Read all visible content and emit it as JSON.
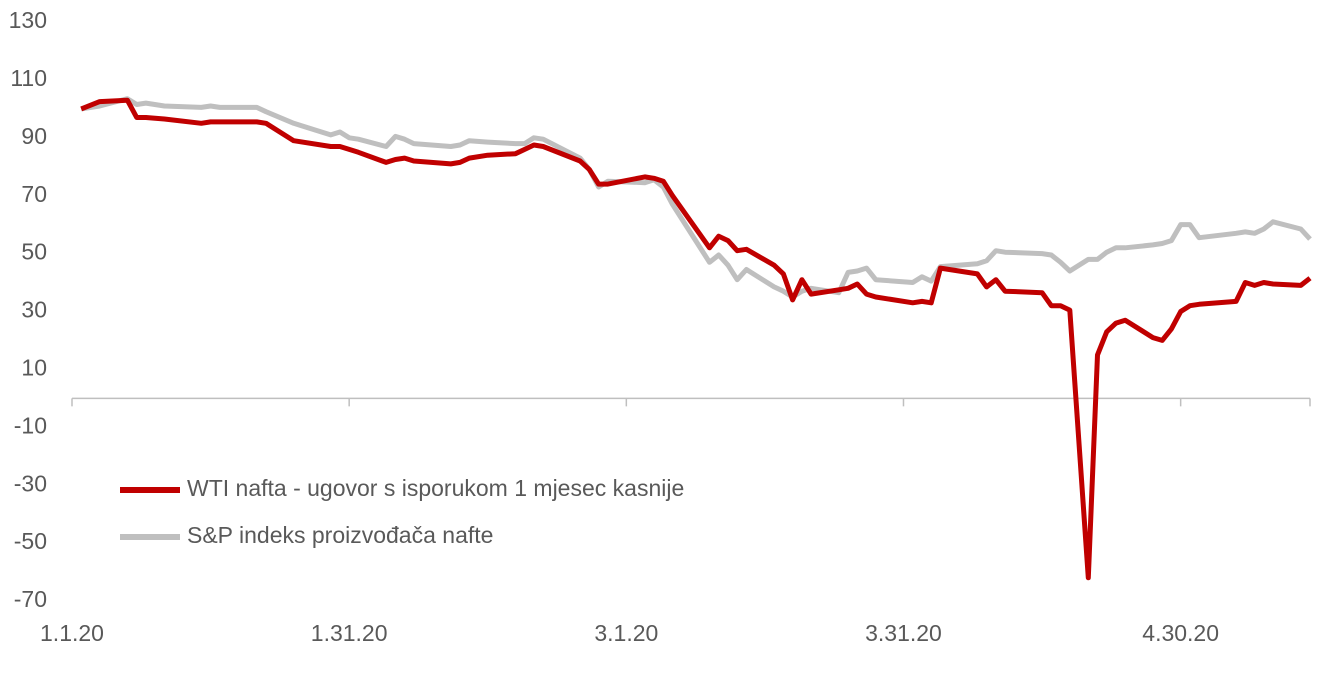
{
  "chart_data": {
    "type": "line",
    "x": [
      "1.2.20",
      "1.4.20",
      "1.7.20",
      "1.8.20",
      "1.9.20",
      "1.11.20",
      "1.15.20",
      "1.16.20",
      "1.17.20",
      "1.21.20",
      "1.22.20",
      "1.25.20",
      "1.29.20",
      "1.30.20",
      "1.31.20",
      "2.1.20",
      "2.4.20",
      "2.5.20",
      "2.6.20",
      "2.7.20",
      "2.11.20",
      "2.12.20",
      "2.13.20",
      "2.15.20",
      "2.18.20",
      "2.19.20",
      "2.20.20",
      "2.21.20",
      "2.25.20",
      "2.26.20",
      "2.27.20",
      "2.28.20",
      "3.3.20",
      "3.4.20",
      "3.5.20",
      "3.6.20",
      "3.10.20",
      "3.11.20",
      "3.12.20",
      "3.13.20",
      "3.14.20",
      "3.17.20",
      "3.18.20",
      "3.19.20",
      "3.20.20",
      "3.21.20",
      "3.24.20",
      "3.25.20",
      "3.26.20",
      "3.27.20",
      "3.28.20",
      "4.1.20",
      "4.2.20",
      "4.3.20",
      "4.4.20",
      "4.8.20",
      "4.9.20",
      "4.10.20",
      "4.11.20",
      "4.15.20",
      "4.16.20",
      "4.17.20",
      "4.18.20",
      "4.20.20",
      "4.21.20",
      "4.22.20",
      "4.23.20",
      "4.24.20",
      "4.27.20",
      "4.28.20",
      "4.29.20",
      "4.30.20",
      "5.1.20",
      "5.2.20",
      "5.6.20",
      "5.7.20",
      "5.8.20",
      "5.9.20",
      "5.10.20",
      "5.13.20",
      "5.14.20"
    ],
    "series": [
      {
        "name": "WTI nafta - ugovor s isporukom 1 mjesec kasnije",
        "color": "#c00000",
        "values": [
          100,
          102.5,
          103,
          97,
          97,
          96.5,
          95,
          95.5,
          95.5,
          95.5,
          95,
          89,
          87,
          87,
          86,
          85,
          81.5,
          82.5,
          83,
          82,
          81,
          81.5,
          83,
          84,
          84.5,
          86,
          87.5,
          87,
          82,
          79,
          74,
          74,
          76.5,
          76,
          75,
          70,
          52,
          56,
          54.5,
          51,
          51.5,
          46,
          43,
          34,
          41,
          36,
          37.5,
          38,
          39.5,
          36,
          35,
          33,
          33.5,
          33,
          45,
          43,
          38.5,
          41,
          37,
          36.5,
          32,
          32,
          30.5,
          -62,
          15,
          23,
          26,
          27,
          21,
          20,
          24,
          30,
          32,
          32.5,
          33.5,
          40,
          39,
          40,
          39.5,
          39,
          41.5
        ]
      },
      {
        "name": "S&P indeks proizvođača nafte",
        "color": "#bfbfbf",
        "values": [
          100,
          101,
          103.5,
          101.5,
          102,
          101,
          100.5,
          101,
          100.5,
          100.5,
          99,
          95,
          91,
          92,
          90,
          89.5,
          87,
          90.5,
          89.5,
          88,
          87,
          87.5,
          89,
          88.5,
          88,
          88,
          90,
          89.5,
          83,
          79,
          73,
          75,
          74.5,
          75.5,
          73,
          67,
          47,
          49.5,
          46,
          41,
          44.5,
          38.5,
          37,
          35,
          37,
          38,
          36.5,
          43.5,
          44,
          45,
          41,
          40,
          42,
          40.5,
          45.5,
          46.5,
          47.5,
          51,
          50.5,
          50,
          49.5,
          47,
          44,
          48,
          48,
          50.5,
          52,
          52,
          53,
          53.5,
          54.5,
          60,
          60,
          55.5,
          57,
          57.5,
          57,
          58.5,
          61,
          58.5,
          55
        ]
      }
    ],
    "xlim": [
      "1.1.20",
      "5.14.20"
    ],
    "xticks": [
      "1.1.20",
      "1.31.20",
      "3.1.20",
      "3.31.20",
      "4.30.20"
    ],
    "ylim": [
      -70,
      130
    ],
    "yticks": [
      -70,
      -50,
      -30,
      -10,
      10,
      30,
      50,
      70,
      90,
      110,
      130
    ],
    "legend": "lower left"
  }
}
